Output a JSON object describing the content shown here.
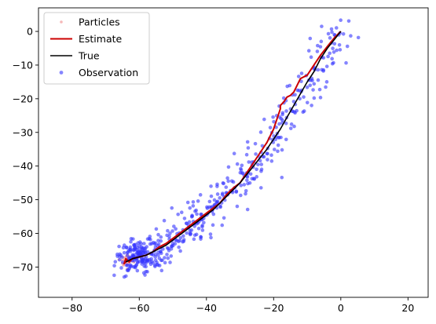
{
  "chart_data": {
    "type": "scatter",
    "title": "",
    "xlabel": "",
    "ylabel": "",
    "xlim": [
      -90,
      26
    ],
    "ylim": [
      -79,
      7
    ],
    "xticks": [
      -80,
      -60,
      -40,
      -20,
      0,
      20
    ],
    "yticks": [
      0,
      -10,
      -20,
      -30,
      -40,
      -50,
      -60,
      -70
    ],
    "xtick_labels": [
      "−80",
      "−60",
      "−40",
      "−20",
      "0",
      "20"
    ],
    "ytick_labels": [
      "0",
      "−10",
      "−20",
      "−30",
      "−40",
      "−50",
      "−60",
      "−70"
    ],
    "grid": false,
    "legend_position": "top-left",
    "legend": [
      {
        "label": "Particles",
        "kind": "marker",
        "color": "#f4a6a6"
      },
      {
        "label": "Estimate",
        "kind": "line",
        "color": "#cc0000"
      },
      {
        "label": "True",
        "kind": "line",
        "color": "#000000"
      },
      {
        "label": "Observation",
        "kind": "marker",
        "color": "#3333ff"
      }
    ],
    "series": [
      {
        "name": "True",
        "color": "#000000",
        "x": [
          0,
          -2,
          -4,
          -6,
          -8,
          -10,
          -12,
          -14,
          -16,
          -18,
          -20,
          -22,
          -24,
          -26,
          -28,
          -30,
          -32,
          -34,
          -36,
          -38,
          -40,
          -42,
          -44,
          -46,
          -48,
          -50,
          -52,
          -54,
          -56,
          -58,
          -60,
          -62,
          -63,
          -64
        ],
        "y": [
          0,
          -2.5,
          -5,
          -8,
          -12,
          -15,
          -18.5,
          -22,
          -25.5,
          -29,
          -32,
          -35,
          -37.5,
          -40,
          -42.5,
          -45,
          -47,
          -49,
          -51,
          -53,
          -54.5,
          -56,
          -57.5,
          -59,
          -60.5,
          -62,
          -63.5,
          -64.5,
          -65.5,
          -66.5,
          -67,
          -67.5,
          -68,
          -68.5
        ]
      },
      {
        "name": "Estimate",
        "color": "#cc0000",
        "x": [
          0,
          -2,
          -4,
          -6,
          -8,
          -10,
          -12,
          -14,
          -15,
          -16,
          -17,
          -18,
          -18,
          -19,
          -20,
          -22,
          -24,
          -26,
          -28,
          -30,
          -32,
          -34,
          -36,
          -38,
          -40,
          -42,
          -44,
          -46,
          -48,
          -50,
          -52,
          -54,
          -56,
          -58,
          -60,
          -62,
          -63,
          -64,
          -64.5,
          -63.5,
          -64
        ],
        "y": [
          0,
          -2,
          -4.5,
          -7,
          -10,
          -13,
          -14,
          -18,
          -19,
          -19.5,
          -21,
          -22,
          -23,
          -26,
          -29,
          -33,
          -36,
          -39,
          -42,
          -45,
          -46.5,
          -48.5,
          -51,
          -52.5,
          -54,
          -55.5,
          -57,
          -58.5,
          -60,
          -61.5,
          -63,
          -64,
          -65.5,
          -66.5,
          -67,
          -67.5,
          -68.5,
          -67.5,
          -69,
          -68,
          -67.5
        ]
      },
      {
        "name": "Observation",
        "color": "#3333ff",
        "kind": "noisy_samples_along_path",
        "count": 420,
        "spread_x": 2.6,
        "spread_y": 2.6,
        "cluster_end": {
          "x": -60,
          "y": -67,
          "count": 100
        }
      },
      {
        "name": "Particles",
        "color": "#f4a6a6",
        "kind": "cluster",
        "center": {
          "x": -63.5,
          "y": -68
        },
        "count": 60,
        "spread": 0.9
      }
    ]
  }
}
